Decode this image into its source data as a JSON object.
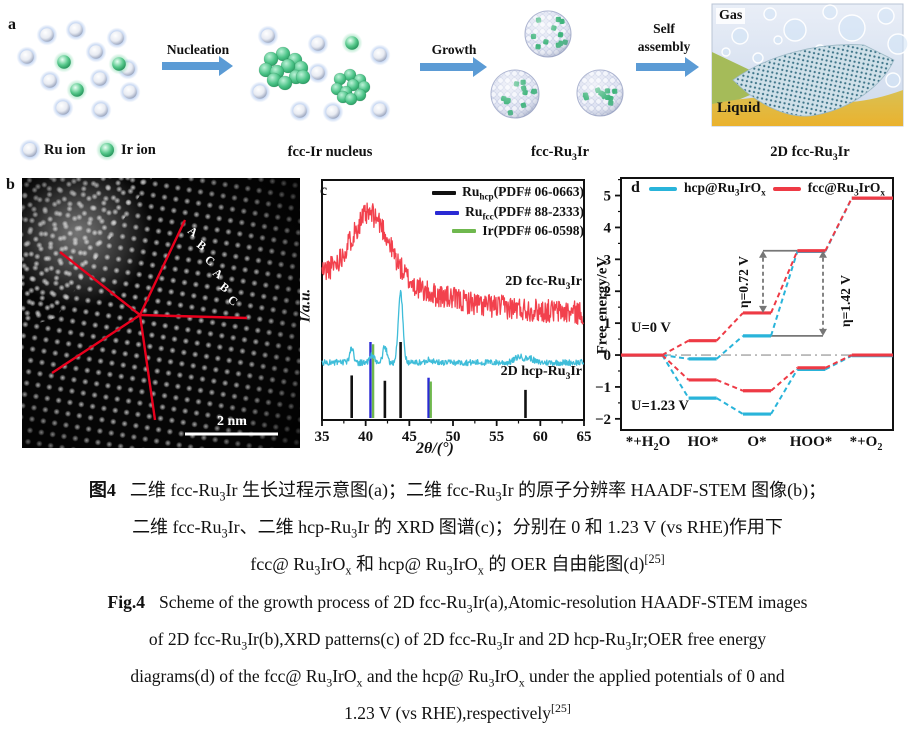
{
  "panels": {
    "a": {
      "label": "a",
      "legend": [
        {
          "label": "Ru ion"
        },
        {
          "label": "Ir ion"
        }
      ],
      "arrows": [
        "Nucleation",
        "Growth"
      ],
      "self_assembly": [
        "Self",
        "assembly"
      ],
      "stages": [
        "fcc-Ir nucleus",
        "fcc-Ru_{3}Ir",
        "2D fcc-Ru_{3}Ir"
      ],
      "gas": "Gas",
      "liquid": "Liquid"
    },
    "b": {
      "label": "b",
      "stacking_letters": [
        "A",
        "B",
        "C",
        "A",
        "B",
        "C"
      ],
      "scale_bar": "2 nm"
    },
    "c": {
      "label": "c"
    },
    "d": {
      "label": "d"
    }
  },
  "chart_data": [
    {
      "type": "line",
      "panel": "c",
      "xlabel": "2θ/(°)",
      "ylabel": "I/a.u.",
      "xlim": [
        35,
        65
      ],
      "xticks": [
        35,
        40,
        45,
        50,
        55,
        60,
        65
      ],
      "series": [
        {
          "name": "2D fcc-Ru_{3}Ir",
          "color": "#f2414d",
          "baseline": [
            [
              35,
              0.615
            ],
            [
              42,
              0.6
            ],
            [
              47,
              0.53
            ],
            [
              53,
              0.48
            ],
            [
              60,
              0.455
            ],
            [
              65,
              0.445
            ]
          ],
          "peaks": [
            {
              "center": 40.5,
              "height": 0.26,
              "sigma": 2.1
            }
          ],
          "noise": 0.05
        },
        {
          "name": "2D hcp-Ru_{3}Ir",
          "color": "#3fbdd9",
          "baseline": [
            [
              35,
              0.235
            ],
            [
              65,
              0.235
            ]
          ],
          "peaks": [
            {
              "center": 38.4,
              "height": 0.062,
              "sigma": 0.22
            },
            {
              "center": 40.7,
              "height": 0.03,
              "sigma": 0.25
            },
            {
              "center": 42.2,
              "height": 0.068,
              "sigma": 0.22
            },
            {
              "center": 44.0,
              "height": 0.3,
              "sigma": 0.26
            },
            {
              "center": 47.3,
              "height": 0.015,
              "sigma": 0.3
            },
            {
              "center": 57.6,
              "height": 0.025,
              "sigma": 0.5
            },
            {
              "center": 58.8,
              "height": 0.018,
              "sigma": 0.4
            }
          ],
          "noise": 0.013
        }
      ],
      "references": [
        {
          "name": "Ru_{hcp}(PDF# 06-0663)",
          "color": "#111111",
          "sticks": [
            [
              38.4,
              0.56
            ],
            [
              42.2,
              0.49
            ],
            [
              44.0,
              1.0
            ],
            [
              58.3,
              0.37
            ]
          ]
        },
        {
          "name": "Ru_{fcc}(PDF# 88-2333)",
          "color": "#2a2ad4",
          "sticks": [
            [
              40.55,
              1.0
            ],
            [
              47.2,
              0.53
            ]
          ]
        },
        {
          "name": "Ir(PDF# 06-0598)",
          "color": "#6fb84e",
          "sticks": [
            [
              40.85,
              0.97
            ],
            [
              47.45,
              0.48
            ]
          ]
        }
      ]
    },
    {
      "type": "line",
      "panel": "d",
      "ylabel": "Free energy/eV",
      "ylim": [
        -2.35,
        5.55
      ],
      "yticks": [
        -2,
        -1,
        0,
        1,
        2,
        3,
        4,
        5
      ],
      "categories": [
        "*+H_{2}O",
        "HO*",
        "O*",
        "HOO*",
        "*+O_{2}"
      ],
      "series": [
        {
          "name": "hcp@Ru_{3}IrO_{x}",
          "potential": "U=0 V",
          "color": "#29b4da",
          "values": [
            0,
            -0.12,
            0.6,
            3.25,
            4.92
          ]
        },
        {
          "name": "fcc@Ru_{3}IrO_{x}",
          "potential": "U=0 V",
          "color": "#ee3a45",
          "values": [
            0,
            0.45,
            1.32,
            3.27,
            4.92
          ]
        },
        {
          "name": "hcp@Ru_{3}IrO_{x}",
          "potential": "U=1.23 V",
          "color": "#29b4da",
          "values": [
            0,
            -1.35,
            -1.85,
            -0.45,
            -0.02
          ]
        },
        {
          "name": "fcc@Ru_{3}IrO_{x}",
          "potential": "U=1.23 V",
          "color": "#ee3a45",
          "values": [
            0,
            -0.78,
            -1.12,
            -0.4,
            0.0
          ]
        }
      ],
      "annotations": {
        "potential_labels": [
          "U=0 V",
          "U=1.23 V"
        ],
        "eta": [
          {
            "label": "η=0.72 V",
            "from": 1.32,
            "to": 3.27
          },
          {
            "label": "η=1.42 V",
            "from": 0.6,
            "to": 3.27
          }
        ],
        "zero_line": 0
      }
    }
  ],
  "caption_cn": {
    "label": "图4",
    "line1": "二维 fcc-Ru_{3}Ir 生长过程示意图(a)；二维 fcc-Ru_{3}Ir 的原子分辨率 HAADF-STEM 图像(b)；",
    "line2": "二维 fcc-Ru_{3}Ir、二维 hcp-Ru_{3}Ir 的 XRD 图谱(c)；分别在 0 和 1.23 V (vs RHE)作用下",
    "line3": "fcc@ Ru_{3}IrO_{x} 和 hcp@ Ru_{3}IrO_{x} 的 OER 自由能图(d)^{[25]}"
  },
  "caption_en": {
    "label": "Fig.4",
    "line1": "Scheme of the growth process of 2D fcc-Ru_{3}Ir(a),Atomic-resolution HAADF-STEM images",
    "line2": "of 2D fcc-Ru_{3}Ir(b),XRD patterns(c) of 2D fcc-Ru_{3}Ir and 2D hcp-Ru_{3}Ir;OER free energy",
    "line3": "diagrams(d) of the fcc@ Ru_{3}IrO_{x} and the hcp@ Ru_{3}IrO_{x} under the applied potentials of 0 and",
    "line4": "1.23 V (vs RHE),respectively^{[25]}"
  },
  "colors": {
    "flow_arrow": "#5b9bd5",
    "xrd_fcc_red": "#f2414d",
    "xrd_hcp_cyan": "#3fbdd9",
    "ref_blue": "#2a2ad4",
    "ref_green": "#6fb84e",
    "fe_red": "#ee3a45",
    "fe_cyan": "#29b4da",
    "stem_annotation_red": "#e8001d",
    "annotation_gray": "#777777"
  }
}
